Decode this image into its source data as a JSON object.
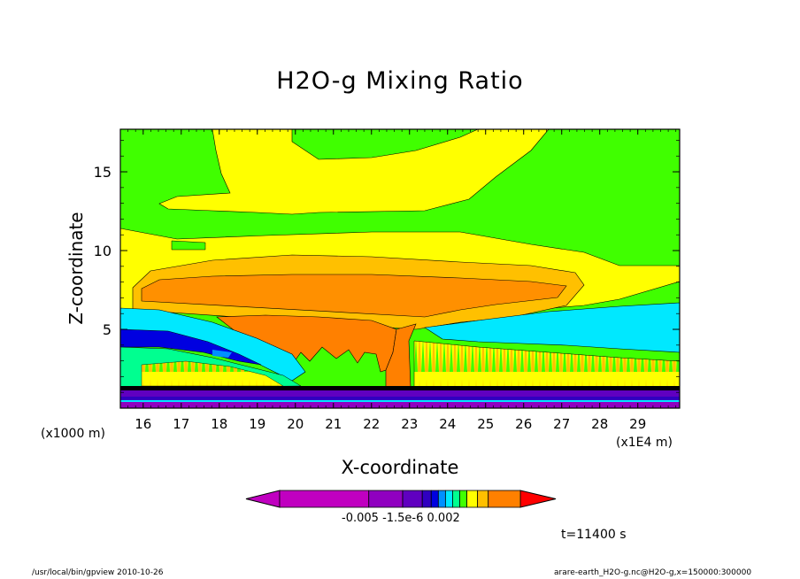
{
  "chart_data": {
    "type": "heatmap",
    "title": "H2O-g Mixing Ratio",
    "xlabel": "X-coordinate",
    "ylabel": "Z-coordinate",
    "x_unit_label": "(x1E4 m)",
    "y_unit_label": "(x1000 m)",
    "xlim": [
      15.4,
      30.1
    ],
    "ylim": [
      0,
      17.7
    ],
    "x_ticks": [
      16,
      17,
      18,
      19,
      20,
      21,
      22,
      23,
      24,
      25,
      26,
      27,
      28,
      29
    ],
    "y_ticks": [
      5,
      10,
      15
    ],
    "colorbar": {
      "colors": [
        "#c000c0",
        "#9000c0",
        "#6000c0",
        "#3000c0",
        "#0000e0",
        "#0090ff",
        "#00e8ff",
        "#00ff90",
        "#40ff00",
        "#ffff00",
        "#ffc000",
        "#ff8000",
        "#ff0000"
      ],
      "tick_labels": [
        "-0.005",
        "-1.5e-6",
        "0.002"
      ]
    },
    "time_label": "t=11400 s"
  },
  "footer": {
    "left": "/usr/local/bin/gpview  2010-10-26",
    "right": "arare-earth_H2O-g.nc@H2O-g,x=150000:300000"
  }
}
